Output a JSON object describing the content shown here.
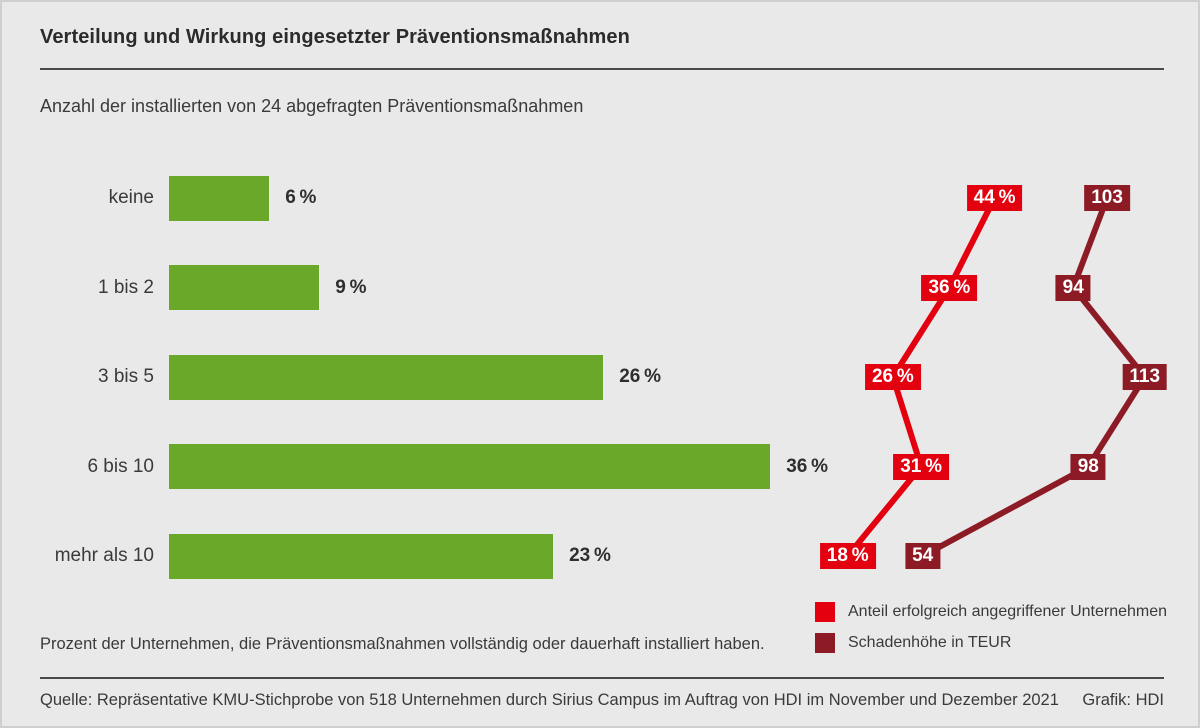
{
  "header": {
    "title": "Verteilung und Wirkung eingesetzter Präventionsmaßnahmen"
  },
  "chart_data": {
    "type": "bar",
    "orientation": "horizontal",
    "title": "Verteilung und Wirkung eingesetzter Präventionsmaßnahmen",
    "subtitle": "Anzahl der installierten von 24 abgefragten Präventionsmaßnahmen",
    "categories": [
      "keine",
      "1 bis 2",
      "3 bis 5",
      "6 bis 10",
      "mehr als 10"
    ],
    "bar_series": {
      "name": "Anzahl der installierten von 24 abgefragten Präventionsmaßnahmen",
      "unit": "%",
      "values": [
        6,
        9,
        26,
        36,
        23
      ],
      "color": "#6aa82a"
    },
    "line_series": [
      {
        "name": "Anteil erfolgreich angegriffener Unternehmen",
        "unit": "%",
        "values": [
          44,
          36,
          26,
          31,
          18
        ],
        "color": "#e3000f"
      },
      {
        "name": "Schadenhöhe in TEUR",
        "unit": "",
        "values": [
          103,
          94,
          113,
          98,
          54
        ],
        "color": "#8c1b26"
      }
    ],
    "note": "Prozent der Unternehmen, die Präventionsmaßnahmen vollständig oder dauerhaft installiert haben.",
    "xlim": [
      0,
      40
    ],
    "grid": false,
    "legend_position": "bottom-right"
  },
  "footer": {
    "source": "Quelle: Repräsentative KMU-Stichprobe von 518 Unternehmen durch Sirius Campus im Auftrag von HDI im November und Dezember 2021",
    "credit": "Grafik: HDI"
  }
}
